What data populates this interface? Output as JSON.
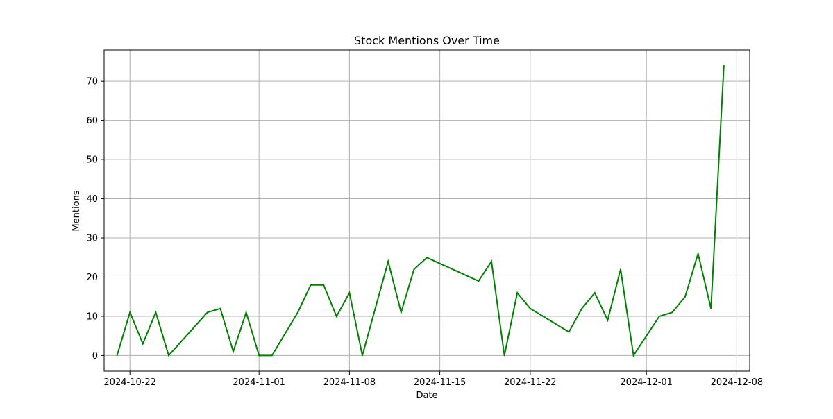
{
  "chart_data": {
    "type": "line",
    "title": "Stock Mentions Over Time",
    "xlabel": "Date",
    "ylabel": "Mentions",
    "grid": true,
    "xlim": [
      "2024-10-20",
      "2024-12-09"
    ],
    "ylim": [
      -4,
      78
    ],
    "x_ticks": [
      "2024-10-22",
      "2024-11-01",
      "2024-11-08",
      "2024-11-15",
      "2024-11-22",
      "2024-12-01",
      "2024-12-08"
    ],
    "y_ticks": [
      0,
      10,
      20,
      30,
      40,
      50,
      60,
      70
    ],
    "colors": {
      "line": "#008000",
      "grid": "#b0b0b0",
      "axes": "#000000"
    },
    "series": [
      {
        "x": [
          "2024-10-21",
          "2024-10-22",
          "2024-10-23",
          "2024-10-24",
          "2024-10-25",
          "2024-10-28",
          "2024-10-29",
          "2024-10-30",
          "2024-10-31",
          "2024-11-01",
          "2024-11-02",
          "2024-11-04",
          "2024-11-05",
          "2024-11-06",
          "2024-11-07",
          "2024-11-08",
          "2024-11-09",
          "2024-11-11",
          "2024-11-12",
          "2024-11-13",
          "2024-11-14",
          "2024-11-18",
          "2024-11-19",
          "2024-11-20",
          "2024-11-21",
          "2024-11-22",
          "2024-11-25",
          "2024-11-26",
          "2024-11-27",
          "2024-11-28",
          "2024-11-29",
          "2024-11-30",
          "2024-12-02",
          "2024-12-03",
          "2024-12-04",
          "2024-12-05",
          "2024-12-06",
          "2024-12-07"
        ],
        "values": [
          0,
          11,
          3,
          11,
          0,
          11,
          12,
          1,
          11,
          0,
          0,
          11,
          18,
          18,
          10,
          16,
          0,
          24,
          11,
          22,
          25,
          19,
          24,
          0,
          16,
          12,
          6,
          12,
          16,
          9,
          22,
          0,
          10,
          11,
          15,
          26,
          12,
          74
        ]
      }
    ]
  }
}
